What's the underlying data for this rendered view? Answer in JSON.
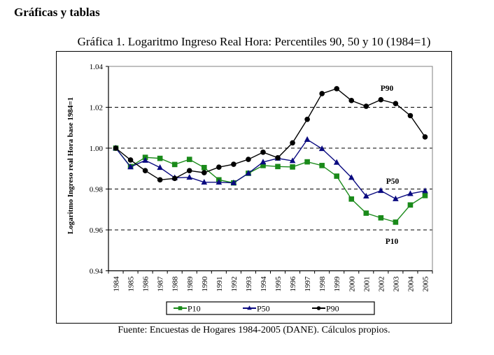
{
  "page": {
    "section_heading": "Gráficas y tablas",
    "source_note": "Fuente: Encuestas de Hogares 1984-2005 (DANE). Cálculos propios."
  },
  "chart_data": {
    "type": "line",
    "title": "Gráfica 1. Logaritmo Ingreso Real Hora: Percentiles 90, 50 y 10 (1984=1)",
    "xlabel": "",
    "ylabel": "Logaritmo Ingreso real Hora base 1984=1",
    "ylim": [
      0.94,
      1.04
    ],
    "yticks": [
      "0.94",
      "0.96",
      "0.98",
      "1.00",
      "1.02",
      "1.04"
    ],
    "ytick_values": [
      0.94,
      0.96,
      0.98,
      1.0,
      1.02,
      1.04
    ],
    "grid": "dashed horizontal",
    "legend_position": "bottom",
    "categories": [
      "1984",
      "1985",
      "1986",
      "1987",
      "1988",
      "1989",
      "1990",
      "1991",
      "1992",
      "1993",
      "1994",
      "1995",
      "1996",
      "1997",
      "1998",
      "1999",
      "2000",
      "2001",
      "2002",
      "2003",
      "2004",
      "2005"
    ],
    "series": [
      {
        "name": "P10",
        "color": "#1a8a1a",
        "marker": "square",
        "values": [
          1.0,
          0.991,
          0.9955,
          0.995,
          0.992,
          0.9945,
          0.9905,
          0.9845,
          0.983,
          0.9877,
          0.9915,
          0.991,
          0.9908,
          0.9933,
          0.9915,
          0.9863,
          0.9751,
          0.9682,
          0.9659,
          0.9638,
          0.9722,
          0.9768
        ]
      },
      {
        "name": "P50",
        "color": "#0a0a80",
        "marker": "triangle",
        "values": [
          1.0,
          0.9908,
          0.994,
          0.9905,
          0.9855,
          0.9857,
          0.9833,
          0.9833,
          0.983,
          0.9877,
          0.9932,
          0.995,
          0.9938,
          1.0042,
          0.9997,
          0.993,
          0.9856,
          0.9765,
          0.9792,
          0.9752,
          0.9777,
          0.9791
        ]
      },
      {
        "name": "P90",
        "color": "#000000",
        "marker": "circle",
        "values": [
          1.0,
          0.9942,
          0.989,
          0.9845,
          0.9852,
          0.989,
          0.988,
          0.9907,
          0.9921,
          0.9945,
          0.998,
          0.9953,
          1.0026,
          1.0141,
          1.0267,
          1.0291,
          1.0233,
          1.0205,
          1.0237,
          1.0218,
          1.0159,
          1.0055
        ]
      }
    ],
    "annotations": [
      {
        "text": "P90",
        "near": "2002-2003",
        "value": 1.026
      },
      {
        "text": "P50",
        "near": "2002-2003",
        "value": 0.984
      },
      {
        "text": "P10",
        "near": "2002-2003",
        "value": 0.955
      }
    ]
  }
}
